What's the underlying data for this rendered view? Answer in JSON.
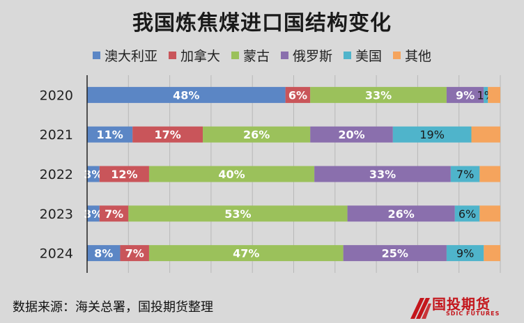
{
  "chart_data": {
    "type": "bar",
    "orientation": "horizontal-stacked-100",
    "title": "我国炼焦煤进口国结构变化",
    "categories": [
      "2020",
      "2021",
      "2022",
      "2023",
      "2024"
    ],
    "series": [
      {
        "name": "澳大利亚",
        "color": "#5b86c5",
        "values": [
          48,
          11,
          3,
          3,
          8
        ]
      },
      {
        "name": "加拿大",
        "color": "#c9555a",
        "values": [
          6,
          17,
          12,
          7,
          7
        ]
      },
      {
        "name": "蒙古",
        "color": "#9bc15b",
        "values": [
          33,
          26,
          40,
          53,
          47
        ]
      },
      {
        "name": "俄罗斯",
        "color": "#8a6fad",
        "values": [
          9,
          20,
          33,
          26,
          25
        ]
      },
      {
        "name": "美国",
        "color": "#4fb4cb",
        "values": [
          1,
          19,
          7,
          6,
          9
        ]
      },
      {
        "name": "其他",
        "color": "#f5a45d",
        "values": [
          3,
          7,
          5,
          5,
          4
        ]
      }
    ],
    "data_labels": [
      [
        "48%",
        "6%",
        "33%",
        "9%",
        "1%",
        ""
      ],
      [
        "11%",
        "17%",
        "26%",
        "20%",
        "19%",
        ""
      ],
      [
        "3%",
        "12%",
        "40%",
        "33%",
        "7%",
        ""
      ],
      [
        "3%",
        "7%",
        "53%",
        "26%",
        "6%",
        ""
      ],
      [
        "8%",
        "7%",
        "47%",
        "25%",
        "9%",
        ""
      ]
    ],
    "xlim": [
      0,
      100
    ],
    "legend_position": "top",
    "grid": true
  },
  "source_note": "数据来源：海关总署，国投期货整理",
  "brand": {
    "name": "国投期货",
    "subtitle": "SDIC FUTURES"
  }
}
